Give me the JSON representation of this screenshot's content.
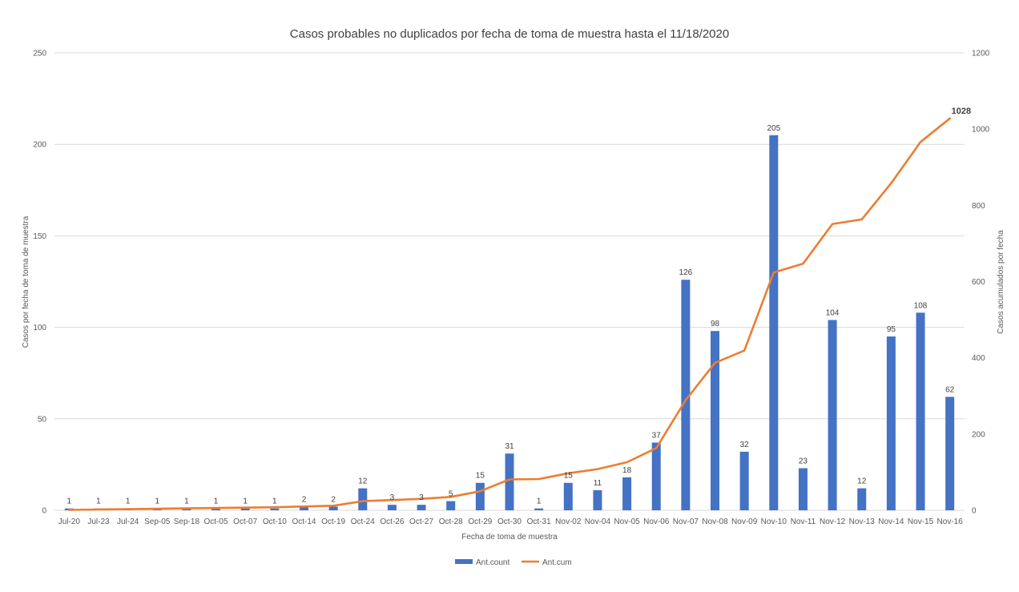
{
  "chart_data": {
    "type": "bar",
    "title": "Casos probables no duplicados por fecha de toma de muestra hasta el 11/18/2020",
    "xlabel": "Fecha de toma de muestra",
    "ylabel": "Casos por fecha de toma de muestra",
    "y2label": "Casos acumulados por fecha",
    "ylim": [
      0,
      250
    ],
    "y2lim": [
      0,
      1200
    ],
    "yticks": [
      "0",
      "50",
      "100",
      "150",
      "200",
      "250"
    ],
    "y2ticks": [
      "0",
      "200",
      "400",
      "600",
      "800",
      "1000",
      "1200"
    ],
    "grid": true,
    "legend_position": "bottom",
    "categories": [
      "Jul-20",
      "Jul-23",
      "Jul-24",
      "Sep-05",
      "Sep-18",
      "Oct-05",
      "Oct-07",
      "Oct-10",
      "Oct-14",
      "Oct-19",
      "Oct-24",
      "Oct-26",
      "Oct-27",
      "Oct-28",
      "Oct-29",
      "Oct-30",
      "Oct-31",
      "Nov-02",
      "Nov-04",
      "Nov-05",
      "Nov-06",
      "Nov-07",
      "Nov-08",
      "Nov-09",
      "Nov-10",
      "Nov-11",
      "Nov-12",
      "Nov-13",
      "Nov-14",
      "Nov-15",
      "Nov-16"
    ],
    "series": [
      {
        "name": "Ant.count",
        "type": "bar",
        "axis": "left",
        "color": "#4472C4",
        "values": [
          1,
          1,
          1,
          1,
          1,
          1,
          1,
          1,
          2,
          2,
          12,
          3,
          3,
          5,
          15,
          31,
          1,
          15,
          11,
          18,
          37,
          126,
          98,
          32,
          205,
          23,
          104,
          12,
          95,
          108,
          62
        ],
        "labels": [
          "1",
          "1",
          "1",
          "1",
          "1",
          "1",
          "1",
          "1",
          "2",
          "2",
          "12",
          "3",
          "3",
          "5",
          "15",
          "31",
          "1",
          "15",
          "11",
          "18",
          "37",
          "126",
          "98",
          "32",
          "205",
          "23",
          "104",
          "12",
          "95",
          "108",
          "62"
        ]
      },
      {
        "name": "Ant.cum",
        "type": "line",
        "axis": "right",
        "color": "#ED7D31",
        "values": [
          1,
          2,
          3,
          4,
          5,
          6,
          7,
          8,
          10,
          12,
          24,
          27,
          30,
          35,
          50,
          81,
          82,
          97,
          108,
          126,
          163,
          289,
          387,
          419,
          624,
          647,
          751,
          763,
          858,
          966,
          1028
        ],
        "end_label": "1028"
      }
    ]
  }
}
